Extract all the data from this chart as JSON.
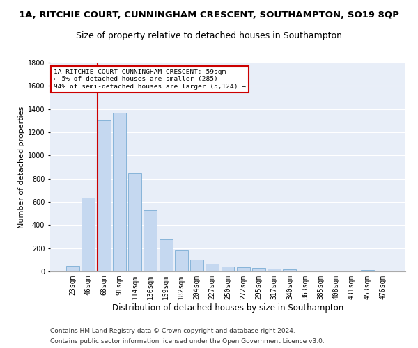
{
  "title1": "1A, RITCHIE COURT, CUNNINGHAM CRESCENT, SOUTHAMPTON, SO19 8QP",
  "title2": "Size of property relative to detached houses in Southampton",
  "xlabel": "Distribution of detached houses by size in Southampton",
  "ylabel": "Number of detached properties",
  "categories": [
    "23sqm",
    "46sqm",
    "68sqm",
    "91sqm",
    "114sqm",
    "136sqm",
    "159sqm",
    "182sqm",
    "204sqm",
    "227sqm",
    "250sqm",
    "272sqm",
    "295sqm",
    "317sqm",
    "340sqm",
    "363sqm",
    "385sqm",
    "408sqm",
    "431sqm",
    "453sqm",
    "476sqm"
  ],
  "values": [
    50,
    635,
    1305,
    1370,
    845,
    530,
    275,
    185,
    105,
    65,
    40,
    35,
    30,
    25,
    20,
    5,
    5,
    5,
    5,
    15,
    5
  ],
  "bar_color": "#c5d8f0",
  "bar_edge_color": "#7aadd4",
  "vline_color": "#cc0000",
  "annotation_text": "1A RITCHIE COURT CUNNINGHAM CRESCENT: 59sqm\n← 5% of detached houses are smaller (285)\n94% of semi-detached houses are larger (5,124) →",
  "annotation_box_color": "#ffffff",
  "annotation_box_edge": "#cc0000",
  "ylim": [
    0,
    1800
  ],
  "yticks": [
    0,
    200,
    400,
    600,
    800,
    1000,
    1200,
    1400,
    1600,
    1800
  ],
  "bg_color": "#e8eef8",
  "grid_color": "#ffffff",
  "footer1": "Contains HM Land Registry data © Crown copyright and database right 2024.",
  "footer2": "Contains public sector information licensed under the Open Government Licence v3.0.",
  "title1_fontsize": 9.5,
  "title2_fontsize": 9,
  "xlabel_fontsize": 8.5,
  "ylabel_fontsize": 8,
  "tick_fontsize": 7,
  "footer_fontsize": 6.5
}
